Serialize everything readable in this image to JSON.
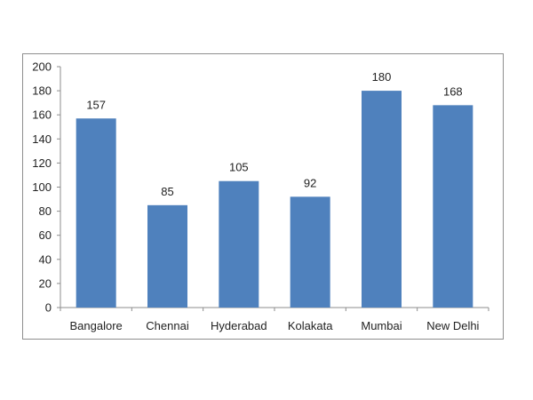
{
  "chart_data": {
    "type": "bar",
    "categories": [
      "Bangalore",
      "Chennai",
      "Hyderabad",
      "Kolakata",
      "Mumbai",
      "New Delhi"
    ],
    "values": [
      157,
      85,
      105,
      92,
      180,
      168
    ],
    "data_labels": [
      "157",
      "85",
      "105",
      "92",
      "180",
      "168"
    ],
    "ylim": [
      0,
      200
    ],
    "yticks": [
      0,
      20,
      40,
      60,
      80,
      100,
      120,
      140,
      160,
      180,
      200
    ],
    "grid": false,
    "legend": "none",
    "bar_color": "#4f81bd",
    "title": "",
    "xlabel": "",
    "ylabel": ""
  }
}
